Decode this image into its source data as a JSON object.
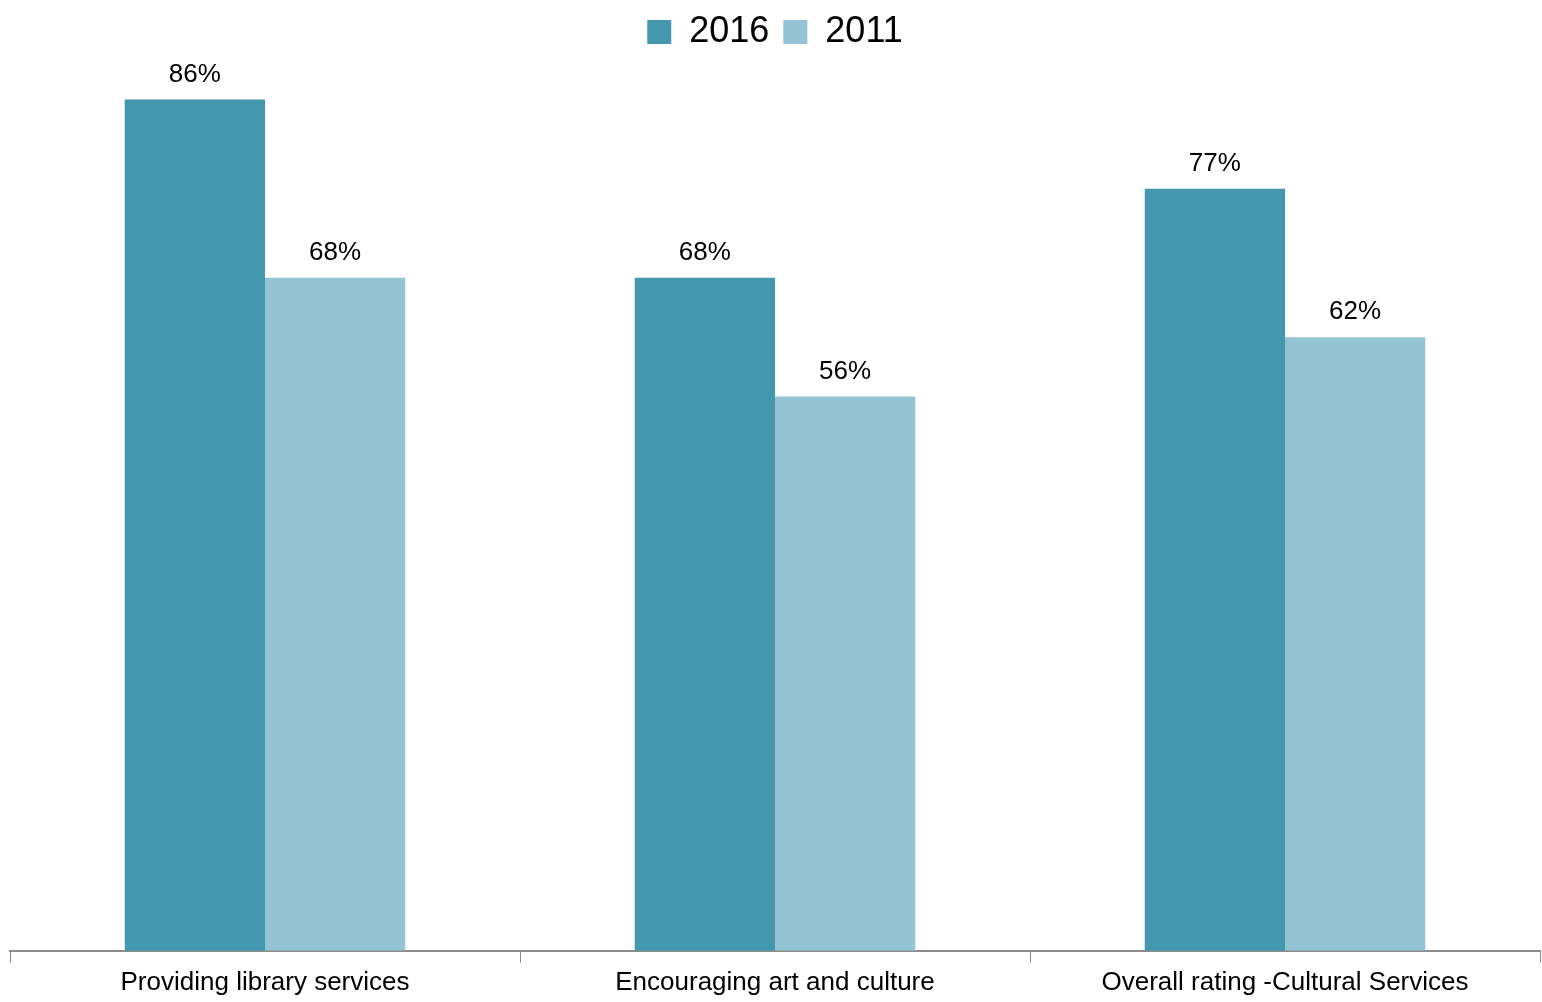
{
  "chart_data": {
    "type": "bar",
    "categories": [
      "Providing library services",
      "Encouraging art and culture",
      "Overall rating -Cultural Services"
    ],
    "series": [
      {
        "name": "2016",
        "color": "#4398ae",
        "values": [
          86,
          68,
          77
        ],
        "value_labels": [
          "86%",
          "68%",
          "77%"
        ]
      },
      {
        "name": "2011",
        "color": "#94c3d4",
        "values": [
          68,
          56,
          62
        ],
        "value_labels": [
          "68%",
          "56%",
          "62%"
        ]
      }
    ],
    "grid": false,
    "legend": "top",
    "tick_labels": "x"
  }
}
